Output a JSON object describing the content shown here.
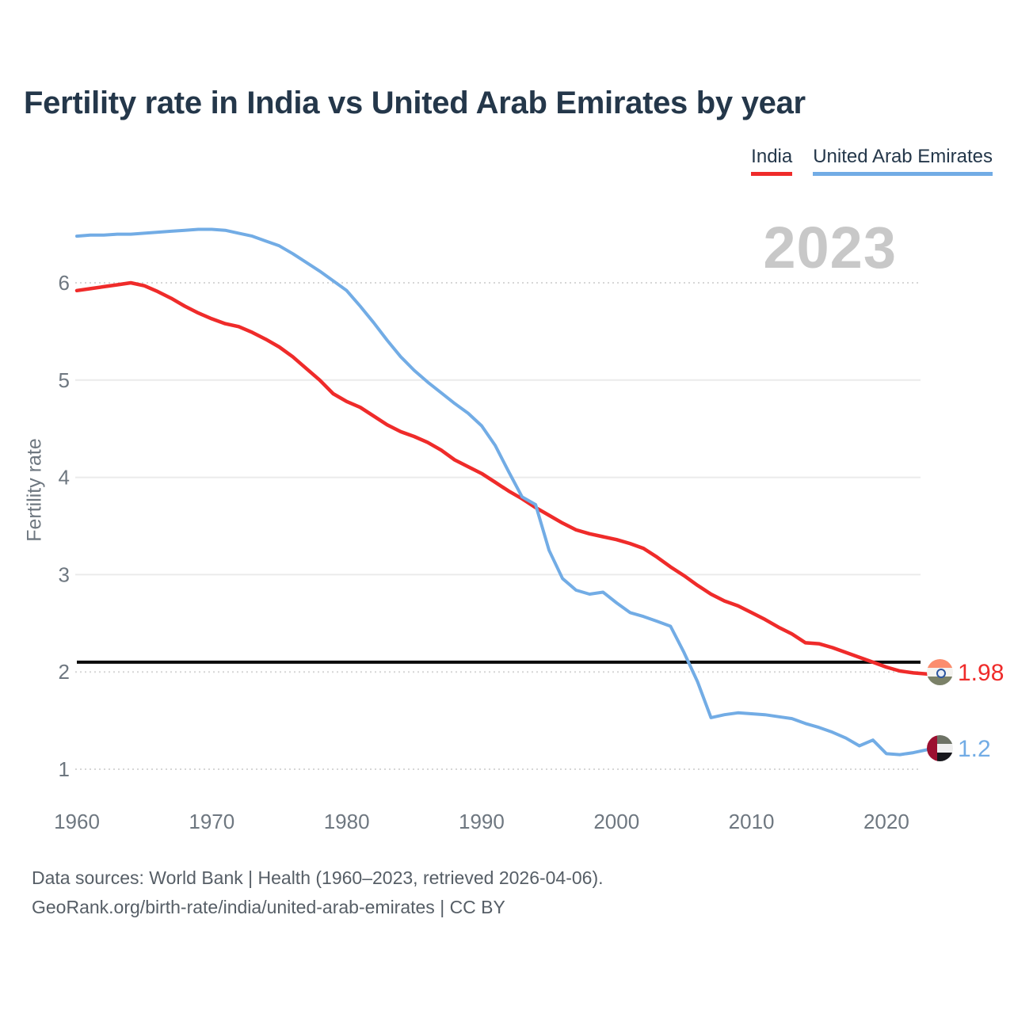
{
  "page": {
    "title": "Fertility rate in India vs United Arab Emirates by year"
  },
  "legend": {
    "items": [
      {
        "label": "India",
        "color": "#ef2b2a"
      },
      {
        "label": "United Arab Emirates",
        "color": "#72ace5"
      }
    ]
  },
  "watermark": {
    "year": "2023"
  },
  "end_labels": {
    "india": {
      "country": "India",
      "value": "1.98",
      "color": "#ef2b2a"
    },
    "uae": {
      "country": "United Arab Emirates",
      "value": "1.2",
      "color": "#72ace5"
    }
  },
  "footer": {
    "line1": "Data sources: World Bank | Health (1960–2023, retrieved 2026-04-06).",
    "line2": "GeoRank.org/birth-rate/india/united-arab-emirates | CC BY"
  },
  "chart_data": {
    "type": "line",
    "title": "Fertility rate in India vs United Arab Emirates by year",
    "xlabel": "",
    "ylabel": "Fertility rate",
    "xlim": [
      1960,
      2023
    ],
    "ylim": [
      0.6,
      6.8
    ],
    "x_ticks": [
      1960,
      1970,
      1980,
      1990,
      2000,
      2010,
      2020
    ],
    "y_ticks": [
      1,
      2,
      3,
      4,
      5,
      6
    ],
    "dotted_y_ticks": [
      6,
      2,
      1
    ],
    "grid": true,
    "legend_position": "top-right",
    "replacement_line": {
      "value": 2.1,
      "color": "#0a0a0a"
    },
    "x": [
      1960,
      1961,
      1962,
      1963,
      1964,
      1965,
      1966,
      1967,
      1968,
      1969,
      1970,
      1971,
      1972,
      1973,
      1974,
      1975,
      1976,
      1977,
      1978,
      1979,
      1980,
      1981,
      1982,
      1983,
      1984,
      1985,
      1986,
      1987,
      1988,
      1989,
      1990,
      1991,
      1992,
      1993,
      1994,
      1995,
      1996,
      1997,
      1998,
      1999,
      2000,
      2001,
      2002,
      2003,
      2004,
      2005,
      2006,
      2007,
      2008,
      2009,
      2010,
      2011,
      2012,
      2013,
      2014,
      2015,
      2016,
      2017,
      2018,
      2019,
      2020,
      2021,
      2022,
      2023
    ],
    "series": [
      {
        "name": "India",
        "color": "#ef2b2a",
        "end_value": 1.98,
        "values": [
          5.92,
          5.94,
          5.96,
          5.98,
          6.0,
          5.97,
          5.91,
          5.84,
          5.76,
          5.69,
          5.63,
          5.58,
          5.55,
          5.49,
          5.42,
          5.34,
          5.24,
          5.12,
          5.0,
          4.86,
          4.78,
          4.72,
          4.63,
          4.54,
          4.47,
          4.42,
          4.36,
          4.28,
          4.18,
          4.11,
          4.04,
          3.95,
          3.86,
          3.78,
          3.69,
          3.61,
          3.53,
          3.46,
          3.42,
          3.39,
          3.36,
          3.32,
          3.27,
          3.18,
          3.08,
          2.99,
          2.89,
          2.8,
          2.73,
          2.68,
          2.61,
          2.54,
          2.46,
          2.39,
          2.3,
          2.29,
          2.25,
          2.2,
          2.15,
          2.1,
          2.05,
          2.01,
          1.99,
          1.98
        ]
      },
      {
        "name": "United Arab Emirates",
        "color": "#72ace5",
        "end_value": 1.2,
        "values": [
          6.48,
          6.49,
          6.49,
          6.5,
          6.5,
          6.51,
          6.52,
          6.53,
          6.54,
          6.55,
          6.55,
          6.54,
          6.51,
          6.48,
          6.43,
          6.38,
          6.3,
          6.21,
          6.12,
          6.02,
          5.92,
          5.76,
          5.59,
          5.41,
          5.24,
          5.1,
          4.98,
          4.87,
          4.76,
          4.66,
          4.53,
          4.33,
          4.06,
          3.8,
          3.72,
          3.25,
          2.96,
          2.84,
          2.8,
          2.82,
          2.71,
          2.61,
          2.57,
          2.52,
          2.47,
          2.2,
          1.9,
          1.53,
          1.56,
          1.58,
          1.57,
          1.56,
          1.54,
          1.52,
          1.47,
          1.43,
          1.38,
          1.32,
          1.24,
          1.3,
          1.16,
          1.15,
          1.17,
          1.2
        ]
      }
    ]
  }
}
